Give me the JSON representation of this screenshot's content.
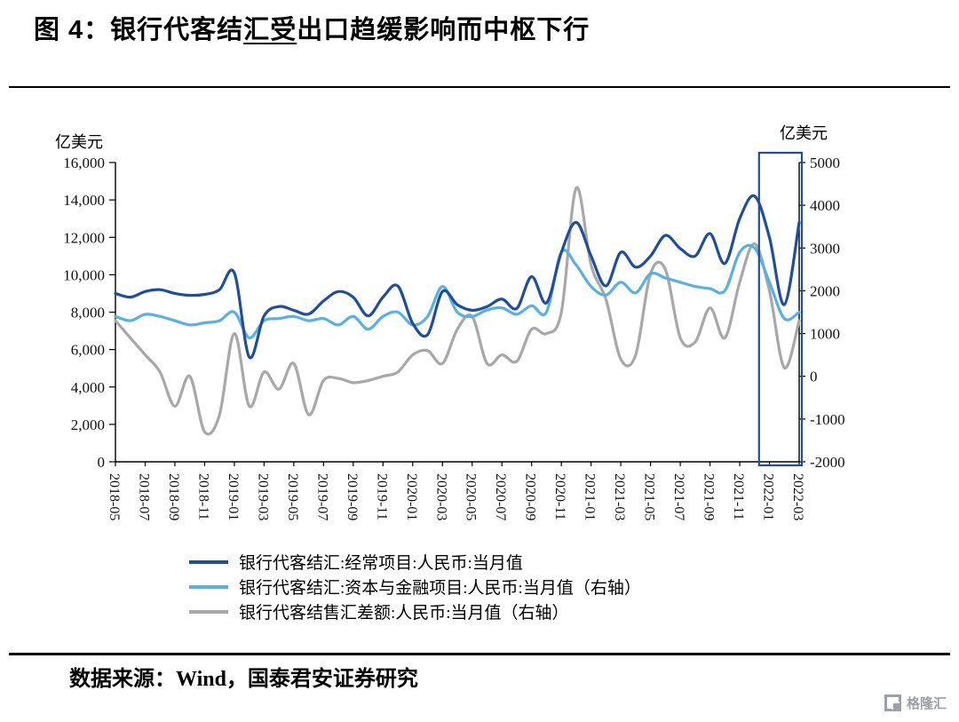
{
  "title": {
    "prefix": "图 4：银行代客结",
    "underlined": "汇受",
    "suffix": "出口趋缓影响而中枢下行"
  },
  "axes": {
    "left_unit": "亿美元",
    "right_unit": "亿美元",
    "left_ticks": [
      0,
      2000,
      4000,
      6000,
      8000,
      10000,
      12000,
      14000,
      16000
    ],
    "right_ticks": [
      -2000,
      -1000,
      0,
      1000,
      2000,
      3000,
      4000,
      5000
    ]
  },
  "chart_data": {
    "type": "line",
    "x": [
      "2018-05",
      "2018-06",
      "2018-07",
      "2018-08",
      "2018-09",
      "2018-10",
      "2018-11",
      "2018-12",
      "2019-01",
      "2019-02",
      "2019-03",
      "2019-04",
      "2019-05",
      "2019-06",
      "2019-07",
      "2019-08",
      "2019-09",
      "2019-10",
      "2019-11",
      "2019-12",
      "2020-01",
      "2020-02",
      "2020-03",
      "2020-04",
      "2020-05",
      "2020-06",
      "2020-07",
      "2020-08",
      "2020-09",
      "2020-10",
      "2020-11",
      "2020-12",
      "2021-01",
      "2021-02",
      "2021-03",
      "2021-04",
      "2021-05",
      "2021-06",
      "2021-07",
      "2021-08",
      "2021-09",
      "2021-10",
      "2021-11",
      "2021-12",
      "2022-01",
      "2022-02",
      "2022-03"
    ],
    "x_tick_every": 2,
    "left_ylim": [
      0,
      16000
    ],
    "right_ylim": [
      -2000,
      5000
    ],
    "grid": false,
    "legend_position": "bottom",
    "highlight_box": {
      "from": "2022-01",
      "to": "2022-03",
      "color": "#1F4E9F"
    },
    "series": [
      {
        "name": "银行代客结汇:经常项目:人民币:当月值",
        "axis": "left",
        "color": "#1F4E9F",
        "values": [
          9000,
          8800,
          9100,
          9200,
          9000,
          8900,
          8950,
          9200,
          10100,
          5600,
          7800,
          8300,
          8100,
          7900,
          8600,
          9100,
          8800,
          7800,
          8800,
          9400,
          7400,
          6800,
          9100,
          8400,
          8100,
          8300,
          8700,
          8200,
          9900,
          8500,
          11200,
          12800,
          11000,
          9400,
          11200,
          10400,
          11000,
          12100,
          11400,
          11000,
          12200,
          10600,
          13000,
          14200,
          12000,
          8400,
          12800
        ]
      },
      {
        "name": "银行代客结汇:资本与金融项目:人民币:当月值（右轴）",
        "axis": "right",
        "color": "#58B0E6",
        "values": [
          1400,
          1300,
          1450,
          1400,
          1300,
          1200,
          1250,
          1300,
          1500,
          900,
          1300,
          1350,
          1400,
          1300,
          1350,
          1200,
          1400,
          1100,
          1400,
          1500,
          1200,
          1400,
          2100,
          1500,
          1400,
          1550,
          1600,
          1450,
          1650,
          1500,
          2900,
          2600,
          2100,
          1900,
          2200,
          1950,
          2400,
          2300,
          2200,
          2100,
          2050,
          2000,
          2900,
          3000,
          2200,
          1350,
          1500
        ]
      },
      {
        "name": "银行代客结售汇差额:人民币:当月值（右轴）",
        "axis": "right",
        "color": "#A8A8A8",
        "values": [
          1300,
          900,
          500,
          100,
          -700,
          0,
          -1300,
          -900,
          1000,
          -700,
          100,
          -300,
          300,
          -900,
          -100,
          -50,
          -150,
          -100,
          0,
          100,
          500,
          600,
          300,
          1100,
          1400,
          300,
          500,
          350,
          1100,
          1000,
          1500,
          4400,
          2600,
          1800,
          400,
          500,
          2400,
          2500,
          900,
          800,
          1600,
          900,
          2200,
          3100,
          2000,
          200,
          1300
        ]
      }
    ]
  },
  "footer": {
    "source_text": "数据来源：Wind，国泰君安证券研究"
  },
  "watermark": {
    "text": "格隆汇"
  }
}
